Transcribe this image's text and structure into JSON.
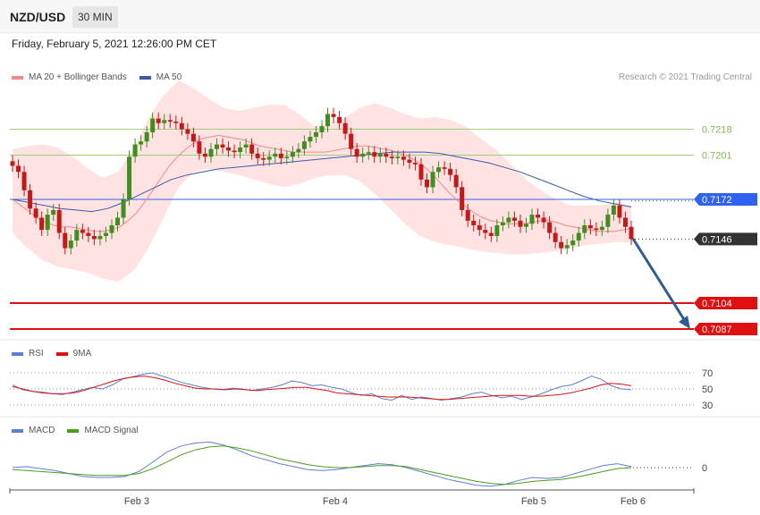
{
  "header": {
    "symbol": "NZD/USD",
    "timeframe": "30 MIN",
    "datetime": "Friday, February 5, 2021 12:26:00 PM CET"
  },
  "copyright": "Research © 2021 Trading Central",
  "colors": {
    "bollinger_fill": "#ffd6d6",
    "ma20": "#f28a8a",
    "ma50": "#3b5ba8",
    "candle_up": "#3f8f1f",
    "candle_down": "#c91717",
    "green_level": "#9fcf7a",
    "blue_level": "#2f62f0",
    "red_level": "#e01010",
    "current_label": "#333333",
    "arrow": "#2f5b96",
    "rsi": "#5a7fd6",
    "rsi_ma": "#e01010",
    "macd": "#5a7fd6",
    "macd_signal": "#4a9e1a"
  },
  "chart_data": [
    {
      "type": "candlestick",
      "title": "NZD/USD 30 MIN",
      "legend": [
        "MA 20 + Bollinger Bands",
        "MA 50"
      ],
      "x_ticks": [
        "Feb 3",
        "Feb 4",
        "Feb 5",
        "Feb 6"
      ],
      "levels": [
        {
          "value": 0.7218,
          "label": "0.7218",
          "kind": "resistance"
        },
        {
          "value": 0.7201,
          "label": "0.7201",
          "kind": "resistance"
        },
        {
          "value": 0.7172,
          "label": "0.7172",
          "kind": "pivot"
        },
        {
          "value": 0.7146,
          "label": "0.7146",
          "kind": "current"
        },
        {
          "value": 0.7104,
          "label": "0.7104",
          "kind": "support"
        },
        {
          "value": 0.7087,
          "label": "0.7087",
          "kind": "support"
        }
      ],
      "close_series": [
        0.7194,
        0.719,
        0.7178,
        0.7166,
        0.716,
        0.7152,
        0.7162,
        0.7165,
        0.715,
        0.714,
        0.7145,
        0.7152,
        0.715,
        0.7148,
        0.7146,
        0.7148,
        0.715,
        0.7155,
        0.716,
        0.7172,
        0.72,
        0.7208,
        0.721,
        0.7216,
        0.7225,
        0.7222,
        0.7224,
        0.7223,
        0.7222,
        0.7218,
        0.7215,
        0.721,
        0.7202,
        0.72,
        0.7205,
        0.7208,
        0.7206,
        0.7204,
        0.7203,
        0.7206,
        0.7208,
        0.7202,
        0.7199,
        0.7198,
        0.72,
        0.7202,
        0.7199,
        0.72,
        0.7203,
        0.7205,
        0.721,
        0.7213,
        0.7216,
        0.722,
        0.7228,
        0.7226,
        0.7222,
        0.7215,
        0.7205,
        0.72,
        0.7202,
        0.7203,
        0.72,
        0.7202,
        0.72,
        0.7199,
        0.72,
        0.7198,
        0.7196,
        0.7195,
        0.7185,
        0.718,
        0.719,
        0.7193,
        0.7192,
        0.7188,
        0.718,
        0.7165,
        0.7158,
        0.7155,
        0.7152,
        0.715,
        0.7148,
        0.7155,
        0.7157,
        0.716,
        0.7158,
        0.7154,
        0.7156,
        0.7162,
        0.716,
        0.7157,
        0.715,
        0.7144,
        0.714,
        0.7142,
        0.7145,
        0.715,
        0.7155,
        0.7153,
        0.7152,
        0.7154,
        0.7162,
        0.7168,
        0.716,
        0.7154,
        0.7146
      ],
      "ma20_series": [
        0.7172,
        0.7168,
        0.7164,
        0.716,
        0.7157,
        0.7155,
        0.7154,
        0.7154,
        0.7153,
        0.7152,
        0.7151,
        0.7151,
        0.7152,
        0.7154,
        0.7158,
        0.7163,
        0.717,
        0.7178,
        0.7186,
        0.7194,
        0.72,
        0.7205,
        0.7209,
        0.7212,
        0.7213,
        0.7214,
        0.7213,
        0.7212,
        0.7211,
        0.7209,
        0.7207,
        0.7206,
        0.7205,
        0.7204,
        0.7203,
        0.7203,
        0.7203,
        0.7203,
        0.7203,
        0.7204,
        0.7205,
        0.7206,
        0.7207,
        0.7207,
        0.7206,
        0.7205,
        0.7204,
        0.7202,
        0.72,
        0.7197,
        0.7193,
        0.7188,
        0.7182,
        0.7176,
        0.7171,
        0.7167,
        0.7163,
        0.716,
        0.7158,
        0.7157,
        0.7156,
        0.7156,
        0.7156,
        0.7157,
        0.7158,
        0.7158,
        0.7157,
        0.7155,
        0.7154,
        0.7153,
        0.7152,
        0.7151,
        0.7151,
        0.7151,
        0.7152,
        0.7153
      ],
      "ma50_series": [
        0.7172,
        0.717,
        0.7168,
        0.7166,
        0.7165,
        0.7164,
        0.7166,
        0.717,
        0.7175,
        0.718,
        0.7185,
        0.7188,
        0.719,
        0.7192,
        0.7193,
        0.7194,
        0.7195,
        0.7196,
        0.7197,
        0.7198,
        0.7199,
        0.72,
        0.7201,
        0.7202,
        0.7203,
        0.7203,
        0.7203,
        0.7202,
        0.72,
        0.7198,
        0.7196,
        0.7193,
        0.719,
        0.7186,
        0.7182,
        0.7178,
        0.7174,
        0.7171,
        0.7169,
        0.7167
      ],
      "bb_upper": [
        0.7205,
        0.7207,
        0.7208,
        0.7206,
        0.72,
        0.7192,
        0.7186,
        0.719,
        0.7205,
        0.7225,
        0.724,
        0.725,
        0.7245,
        0.7238,
        0.7232,
        0.723,
        0.7232,
        0.7234,
        0.7234,
        0.7228,
        0.722,
        0.7222,
        0.7225,
        0.7232,
        0.7235,
        0.7232,
        0.7228,
        0.7225,
        0.7226,
        0.7224,
        0.722,
        0.7212,
        0.7205,
        0.7195,
        0.7185,
        0.7178,
        0.7172,
        0.7168,
        0.7168,
        0.7168,
        0.717,
        0.7168
      ],
      "bb_lower": [
        0.715,
        0.714,
        0.7132,
        0.7128,
        0.7126,
        0.7124,
        0.712,
        0.7118,
        0.7125,
        0.714,
        0.716,
        0.718,
        0.719,
        0.7192,
        0.719,
        0.7188,
        0.7185,
        0.7182,
        0.718,
        0.7182,
        0.7186,
        0.7188,
        0.7188,
        0.7184,
        0.7176,
        0.7166,
        0.7156,
        0.7148,
        0.7144,
        0.7142,
        0.714,
        0.7138,
        0.7137,
        0.7136,
        0.7136,
        0.7137,
        0.7138,
        0.714,
        0.7142,
        0.7143,
        0.7144,
        0.7144
      ]
    },
    {
      "type": "line",
      "title": "RSI",
      "legend": [
        "RSI",
        "9MA"
      ],
      "y_ticks": [
        "70",
        "50",
        "30"
      ],
      "rsi_series": [
        55,
        49,
        47,
        46,
        44,
        43,
        46,
        49,
        52,
        50,
        55,
        62,
        65,
        68,
        70,
        66,
        62,
        58,
        55,
        52,
        50,
        49,
        51,
        50,
        48,
        50,
        52,
        55,
        60,
        58,
        54,
        55,
        52,
        50,
        45,
        42,
        44,
        38,
        36,
        42,
        37,
        40,
        38,
        36,
        38,
        40,
        44,
        46,
        42,
        39,
        41,
        37,
        40,
        44,
        49,
        53,
        55,
        60,
        66,
        62,
        54,
        50,
        49
      ],
      "rsi_ma_series": [
        53,
        50,
        47,
        45,
        44,
        44,
        45,
        48,
        52,
        56,
        60,
        63,
        65,
        66,
        64,
        61,
        57,
        54,
        51,
        50,
        50,
        49,
        50,
        49,
        48,
        49,
        50,
        51,
        52,
        52,
        50,
        48,
        45,
        44,
        43,
        42,
        41,
        40,
        40,
        40,
        39,
        38,
        37,
        37,
        38,
        39,
        40,
        41,
        42,
        42,
        42,
        41,
        41,
        42,
        43,
        45,
        48,
        51,
        55,
        57,
        56,
        54
      ],
      "series_names": [
        "RSI",
        "9MA"
      ]
    },
    {
      "type": "line",
      "title": "MACD",
      "legend": [
        "MACD",
        "MACD Signal"
      ],
      "y_ticks": [
        "0"
      ],
      "macd_series": [
        0.0,
        0.0001,
        -0.0001,
        -0.0003,
        -0.0006,
        -0.0009,
        -0.001,
        -0.001,
        -0.0009,
        -0.0004,
        0.0006,
        0.0016,
        0.0022,
        0.0025,
        0.0026,
        0.0023,
        0.0018,
        0.0012,
        0.0008,
        0.0004,
        0.0001,
        -0.0002,
        -0.0003,
        -0.0002,
        0.0,
        0.0002,
        0.0004,
        0.0003,
        0.0,
        -0.0004,
        -0.0008,
        -0.0012,
        -0.0015,
        -0.0018,
        -0.0019,
        -0.0017,
        -0.0013,
        -0.001,
        -0.0011,
        -0.001,
        -0.0006,
        -0.0002,
        0.0002,
        0.0004,
        0.0001
      ],
      "signal_series": [
        -0.0002,
        -0.0003,
        -0.0004,
        -0.0005,
        -0.0006,
        -0.0007,
        -0.0008,
        -0.0008,
        -0.0008,
        -0.0006,
        -0.0001,
        0.0006,
        0.0013,
        0.0018,
        0.0021,
        0.0022,
        0.002,
        0.0017,
        0.0013,
        0.0009,
        0.0006,
        0.0003,
        0.0001,
        0.0,
        0.0,
        0.0001,
        0.0002,
        0.0002,
        0.0001,
        -0.0002,
        -0.0005,
        -0.0008,
        -0.0011,
        -0.0014,
        -0.0016,
        -0.0017,
        -0.0016,
        -0.0014,
        -0.0013,
        -0.0012,
        -0.001,
        -0.0007,
        -0.0004,
        -0.0001,
        0.0
      ],
      "series_names": [
        "MACD",
        "MACD Signal"
      ]
    }
  ]
}
